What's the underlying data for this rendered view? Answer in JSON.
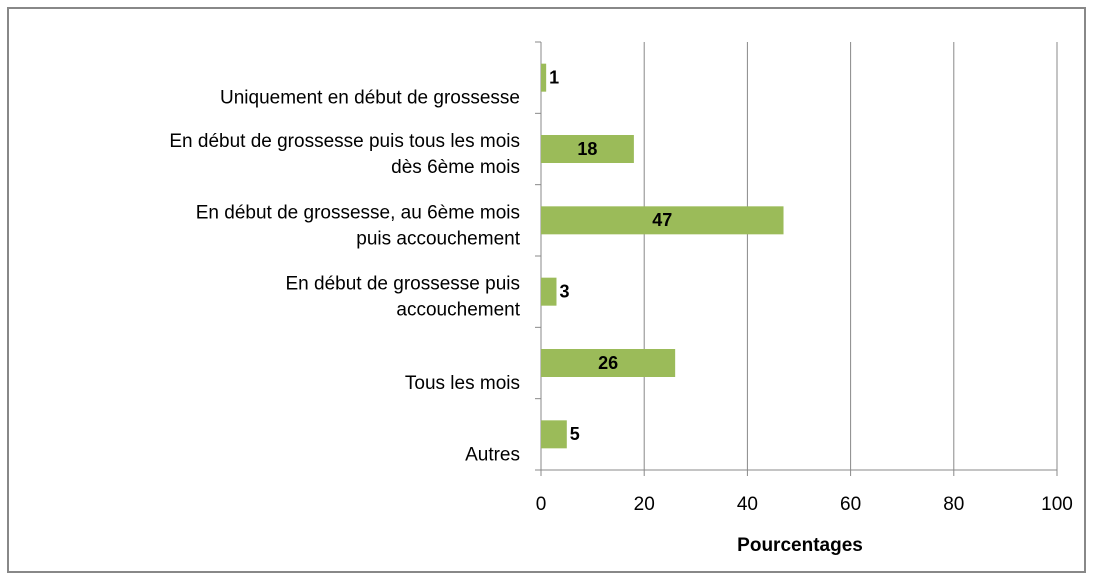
{
  "chart_data": {
    "type": "hbar",
    "categories": [
      "Uniquement en début de grossesse",
      "En début de grossesse puis tous les mois\ndès 6ème mois",
      "En début de grossesse, au 6ème mois\npuis accouchement",
      "En début de grossesse puis\naccouchement",
      "Tous les mois",
      "Autres"
    ],
    "values": [
      1,
      18,
      47,
      3,
      26,
      5
    ],
    "color": "#9bbb59",
    "xlabel": "Pourcentages",
    "xlim": [
      0,
      100
    ],
    "xticks": [
      0,
      20,
      40,
      60,
      80,
      100
    ],
    "grid": true
  }
}
